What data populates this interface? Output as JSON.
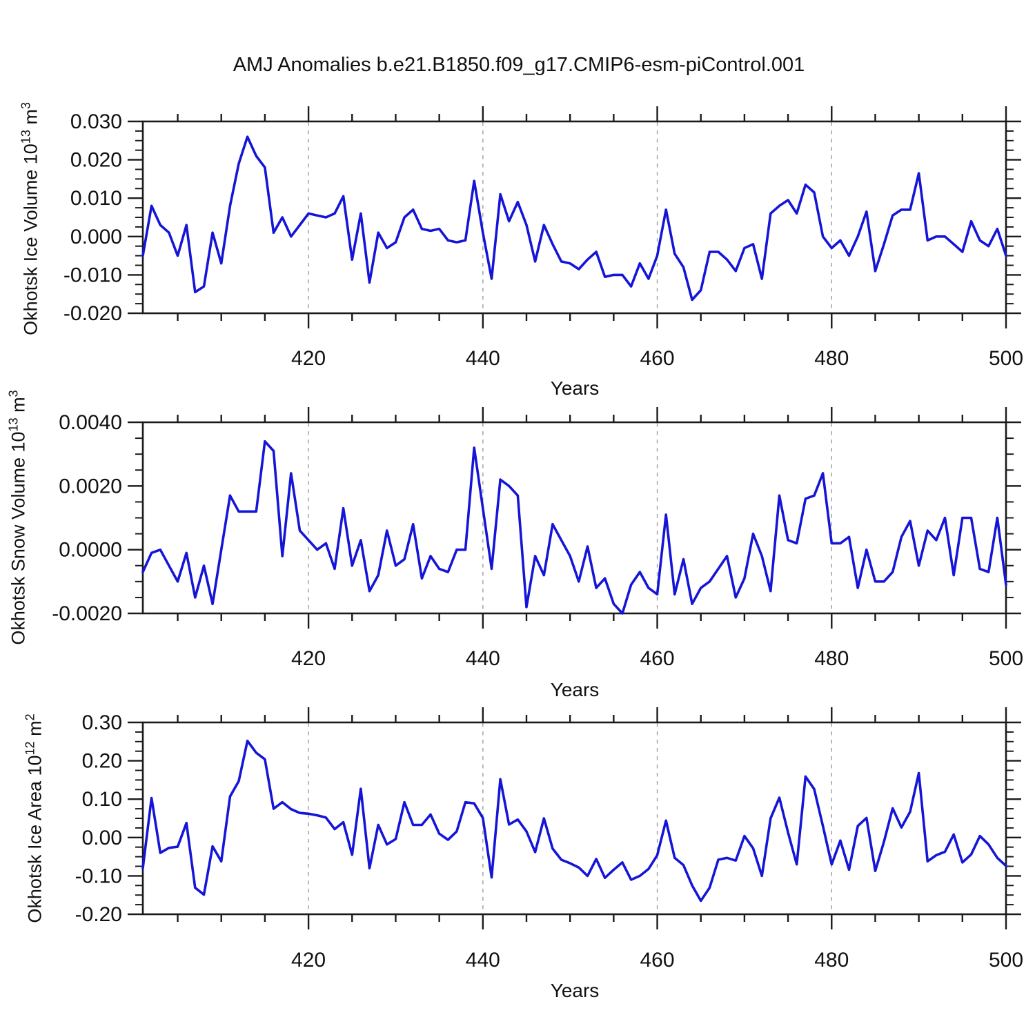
{
  "title": "AMJ Anomalies b.e21.B1850.f09_g17.CMIP6-esm-piControl.001",
  "line_color": "#1515d8",
  "axis_color": "#1a1a1a",
  "grid_color": "#9e9e9e",
  "chart_data": {
    "type": "line",
    "x_label": "Years",
    "x": {
      "start": 401,
      "end": 500,
      "step": 1
    },
    "x_ticks_major": [
      420,
      440,
      460,
      480,
      500
    ],
    "x_tick_minor_step": 5,
    "grid_years": [
      420,
      440,
      460,
      480
    ],
    "legend": "none",
    "grid": "vertical-dashed",
    "panels": [
      {
        "name": "okhotsk-ice-volume",
        "ylabel_prefix": "Okhotsk Ice Volume 10",
        "ylabel_sup": "13",
        "ylabel_mid": " m",
        "ylabel_sup2": "3",
        "ylim": [
          -0.02,
          0.03
        ],
        "ytick_values": [
          0.03,
          0.02,
          0.01,
          0.0,
          -0.01,
          -0.02
        ],
        "ytick_labels": [
          "0.030",
          "0.020",
          "0.010",
          "0.000",
          "-0.010",
          "-0.020"
        ],
        "y_minor_step": 0.0025,
        "values": [
          -0.005,
          0.008,
          0.003,
          0.001,
          -0.005,
          0.003,
          -0.0145,
          -0.013,
          0.001,
          -0.007,
          0.008,
          0.019,
          0.026,
          0.021,
          0.018,
          0.001,
          0.005,
          0.0,
          0.003,
          0.006,
          0.0055,
          0.005,
          0.006,
          0.0105,
          -0.006,
          0.006,
          -0.012,
          0.001,
          -0.003,
          -0.0015,
          0.005,
          0.007,
          0.002,
          0.0015,
          0.002,
          -0.001,
          -0.0015,
          -0.001,
          0.0145,
          0.001,
          -0.011,
          0.011,
          0.004,
          0.009,
          0.003,
          -0.0065,
          0.003,
          -0.002,
          -0.0065,
          -0.007,
          -0.0085,
          -0.006,
          -0.004,
          -0.0105,
          -0.01,
          -0.01,
          -0.013,
          -0.007,
          -0.011,
          -0.005,
          0.007,
          -0.0045,
          -0.008,
          -0.0165,
          -0.014,
          -0.004,
          -0.004,
          -0.006,
          -0.009,
          -0.003,
          -0.002,
          -0.011,
          0.006,
          0.008,
          0.0095,
          0.006,
          0.0135,
          0.0115,
          0.0,
          -0.003,
          -0.001,
          -0.005,
          0.0,
          0.0065,
          -0.009,
          -0.002,
          0.0055,
          0.007,
          0.007,
          0.0165,
          -0.001,
          0.0,
          0.0,
          -0.002,
          -0.004,
          0.004,
          -0.001,
          -0.0025,
          0.002,
          -0.005
        ]
      },
      {
        "name": "okhotsk-snow-volume",
        "ylabel_prefix": "Okhotsk Snow Volume 10",
        "ylabel_sup": "13",
        "ylabel_mid": " m",
        "ylabel_sup2": "3",
        "ylim": [
          -0.002,
          0.004
        ],
        "ytick_values": [
          0.004,
          0.002,
          0.0,
          -0.002
        ],
        "ytick_labels": [
          "0.0040",
          "0.0020",
          "0.0000",
          "-0.0020"
        ],
        "y_minor_step": 0.0005,
        "values": [
          -0.0007,
          -0.0001,
          0.0,
          -0.0005,
          -0.001,
          -0.0001,
          -0.0015,
          -0.0005,
          -0.0017,
          0.0,
          0.0017,
          0.0012,
          0.0012,
          0.0012,
          0.0034,
          0.0031,
          -0.0002,
          0.0024,
          0.0006,
          0.0003,
          0.0,
          0.0002,
          -0.0006,
          0.0013,
          -0.0005,
          0.0003,
          -0.0013,
          -0.0008,
          0.0006,
          -0.0005,
          -0.0003,
          0.0008,
          -0.0009,
          -0.0002,
          -0.0006,
          -0.0007,
          0.0,
          0.0,
          0.0032,
          0.0013,
          -0.0006,
          0.0022,
          0.002,
          0.0017,
          -0.0018,
          -0.0002,
          -0.0008,
          0.0008,
          0.0003,
          -0.0002,
          -0.001,
          0.0001,
          -0.0012,
          -0.0009,
          -0.0017,
          -0.002,
          -0.0011,
          -0.0007,
          -0.0012,
          -0.0014,
          0.0011,
          -0.0014,
          -0.0003,
          -0.0017,
          -0.0012,
          -0.001,
          -0.0006,
          -0.0002,
          -0.0015,
          -0.0009,
          0.0005,
          -0.0002,
          -0.0013,
          0.0017,
          0.0003,
          0.0002,
          0.0016,
          0.0017,
          0.0024,
          0.0002,
          0.0002,
          0.0004,
          -0.0012,
          0.0,
          -0.001,
          -0.001,
          -0.0007,
          0.0004,
          0.0009,
          -0.0005,
          0.0006,
          0.0003,
          0.001,
          -0.0008,
          0.001,
          0.001,
          -0.0006,
          -0.0007,
          0.001,
          -0.0011
        ]
      },
      {
        "name": "okhotsk-ice-area",
        "ylabel_prefix": "Okhotsk Ice Area 10",
        "ylabel_sup": "12",
        "ylabel_mid": " m",
        "ylabel_sup2": "2",
        "ylim": [
          -0.2,
          0.3
        ],
        "ytick_values": [
          0.3,
          0.2,
          0.1,
          0.0,
          -0.1,
          -0.2
        ],
        "ytick_labels": [
          "0.30",
          "0.20",
          "0.10",
          "0.00",
          "-0.10",
          "-0.20"
        ],
        "y_minor_step": 0.025,
        "values": [
          -0.08,
          0.103,
          -0.04,
          -0.027,
          -0.024,
          0.038,
          -0.131,
          -0.149,
          -0.023,
          -0.062,
          0.107,
          0.147,
          0.252,
          0.221,
          0.204,
          0.075,
          0.092,
          0.074,
          0.064,
          0.062,
          0.058,
          0.052,
          0.022,
          0.04,
          -0.045,
          0.127,
          -0.08,
          0.033,
          -0.018,
          -0.004,
          0.092,
          0.033,
          0.033,
          0.06,
          0.01,
          -0.006,
          0.016,
          0.092,
          0.089,
          0.051,
          -0.104,
          0.152,
          0.034,
          0.047,
          0.016,
          -0.038,
          0.05,
          -0.029,
          -0.058,
          -0.067,
          -0.078,
          -0.1,
          -0.056,
          -0.105,
          -0.084,
          -0.065,
          -0.11,
          -0.1,
          -0.082,
          -0.046,
          0.044,
          -0.053,
          -0.072,
          -0.125,
          -0.165,
          -0.131,
          -0.058,
          -0.053,
          -0.06,
          0.004,
          -0.028,
          -0.1,
          0.05,
          0.104,
          0.013,
          -0.07,
          0.159,
          0.126,
          0.03,
          -0.07,
          -0.008,
          -0.084,
          0.03,
          0.051,
          -0.087,
          -0.011,
          0.076,
          0.026,
          0.067,
          0.168,
          -0.062,
          -0.046,
          -0.037,
          0.008,
          -0.065,
          -0.044,
          0.004,
          -0.018,
          -0.053,
          -0.074
        ]
      }
    ]
  }
}
